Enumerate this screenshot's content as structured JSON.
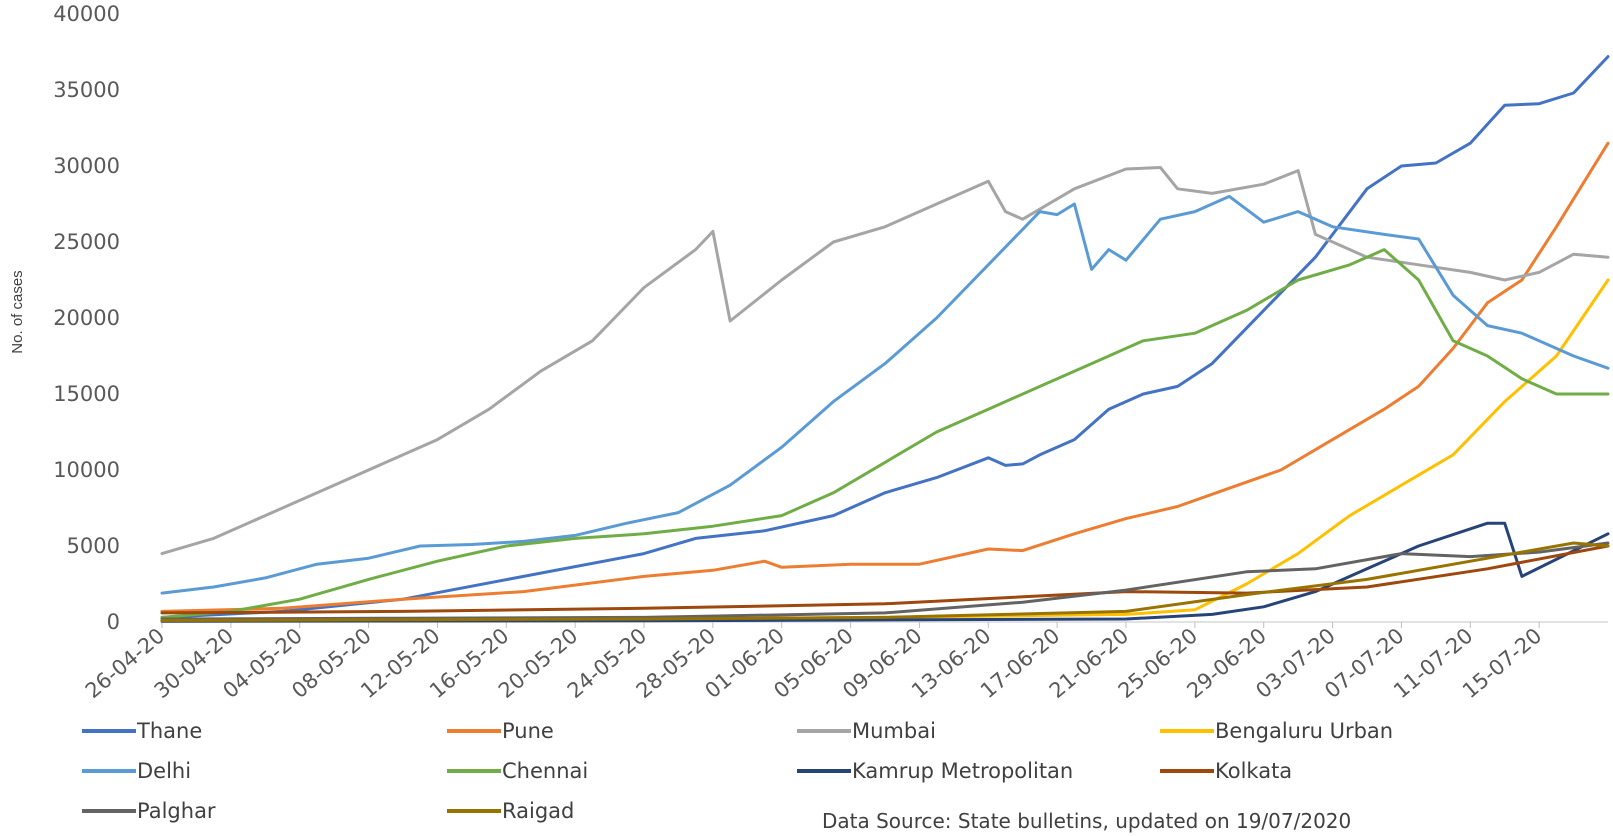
{
  "chart_data": {
    "type": "line",
    "title": "",
    "xlabel": "",
    "ylabel": "No. of cases",
    "ylim": [
      0,
      40000
    ],
    "yticks": [
      "0",
      "5000",
      "10000",
      "15000",
      "20000",
      "25000",
      "30000",
      "35000",
      "40000"
    ],
    "x_tick_labels": [
      "26-04-20",
      "30-04-20",
      "04-05-20",
      "08-05-20",
      "12-05-20",
      "16-05-20",
      "20-05-20",
      "24-05-20",
      "28-05-20",
      "01-06-20",
      "05-06-20",
      "09-06-20",
      "13-06-20",
      "17-06-20",
      "21-06-20",
      "25-06-20",
      "29-06-20",
      "03-07-20",
      "07-07-20",
      "11-07-20",
      "15-07-20"
    ],
    "x_start": "26-04-20",
    "x_end": "19-07-20",
    "grid": false,
    "legend_position": "bottom",
    "source_note": "Data Source: State bulletins, updated on  19/07/2020",
    "series": [
      {
        "name": "Thane",
        "color": "#4472C4",
        "x": [
          "26-04-20",
          "03-05-20",
          "10-05-20",
          "17-05-20",
          "24-05-20",
          "27-05-20",
          "31-05-20",
          "04-06-20",
          "07-06-20",
          "10-06-20",
          "13-06-20",
          "14-06-20",
          "15-06-20",
          "16-06-20",
          "18-06-20",
          "20-06-20",
          "22-06-20",
          "24-06-20",
          "26-06-20",
          "29-06-20",
          "02-07-20",
          "05-07-20",
          "07-07-20",
          "09-07-20",
          "11-07-20",
          "13-07-20",
          "15-07-20",
          "17-07-20",
          "19-07-20"
        ],
        "y": [
          300,
          700,
          1500,
          3000,
          4500,
          5500,
          6000,
          7000,
          8500,
          9500,
          10800,
          10300,
          10400,
          11000,
          12000,
          14000,
          15000,
          15500,
          17000,
          20500,
          24000,
          28500,
          30000,
          30200,
          31500,
          34000,
          34100,
          34800,
          37200
        ]
      },
      {
        "name": "Pune",
        "color": "#ED7D31",
        "x": [
          "26-04-20",
          "03-05-20",
          "10-05-20",
          "17-05-20",
          "24-05-20",
          "28-05-20",
          "31-05-20",
          "01-06-20",
          "05-06-20",
          "09-06-20",
          "13-06-20",
          "15-06-20",
          "18-06-20",
          "21-06-20",
          "24-06-20",
          "27-06-20",
          "30-06-20",
          "03-07-20",
          "06-07-20",
          "08-07-20",
          "10-07-20",
          "12-07-20",
          "14-07-20",
          "16-07-20",
          "19-07-20"
        ],
        "y": [
          700,
          900,
          1500,
          2000,
          3000,
          3400,
          4000,
          3600,
          3800,
          3800,
          4800,
          4700,
          5800,
          6800,
          7600,
          8800,
          10000,
          12000,
          14000,
          15500,
          18000,
          21000,
          22500,
          26000,
          31500
        ]
      },
      {
        "name": "Mumbai",
        "color": "#A5A5A5",
        "x": [
          "26-04-20",
          "29-04-20",
          "03-05-20",
          "06-05-20",
          "09-05-20",
          "12-05-20",
          "15-05-20",
          "18-05-20",
          "21-05-20",
          "24-05-20",
          "27-05-20",
          "28-05-20",
          "29-05-20",
          "01-06-20",
          "04-06-20",
          "07-06-20",
          "10-06-20",
          "13-06-20",
          "14-06-20",
          "15-06-20",
          "18-06-20",
          "21-06-20",
          "23-06-20",
          "24-06-20",
          "26-06-20",
          "29-06-20",
          "01-07-20",
          "02-07-20",
          "05-07-20",
          "08-07-20",
          "11-07-20",
          "13-07-20",
          "15-07-20",
          "17-07-20",
          "19-07-20"
        ],
        "y": [
          4500,
          5500,
          7500,
          9000,
          10500,
          12000,
          14000,
          16500,
          18500,
          22000,
          24500,
          25700,
          19800,
          22500,
          25000,
          26000,
          27500,
          29000,
          27000,
          26500,
          28500,
          29800,
          29900,
          28500,
          28200,
          28800,
          29700,
          25500,
          24000,
          23500,
          23000,
          22500,
          23000,
          24200,
          24000
        ]
      },
      {
        "name": "Bengaluru Urban",
        "color": "#FFC000",
        "x": [
          "26-04-20",
          "10-05-20",
          "24-05-20",
          "07-06-20",
          "21-06-20",
          "25-06-20",
          "28-06-20",
          "01-07-20",
          "04-07-20",
          "07-07-20",
          "10-07-20",
          "13-07-20",
          "16-07-20",
          "19-07-20"
        ],
        "y": [
          100,
          150,
          200,
          300,
          500,
          800,
          2500,
          4500,
          7000,
          9000,
          11000,
          14500,
          17500,
          22500
        ]
      },
      {
        "name": "Delhi",
        "color": "#5B9BD5",
        "x": [
          "26-04-20",
          "29-04-20",
          "02-05-20",
          "05-05-20",
          "08-05-20",
          "11-05-20",
          "14-05-20",
          "17-05-20",
          "20-05-20",
          "23-05-20",
          "26-05-20",
          "29-05-20",
          "01-06-20",
          "04-06-20",
          "07-06-20",
          "10-06-20",
          "13-06-20",
          "16-06-20",
          "17-06-20",
          "18-06-20",
          "19-06-20",
          "20-06-20",
          "21-06-20",
          "23-06-20",
          "25-06-20",
          "27-06-20",
          "29-06-20",
          "01-07-20",
          "03-07-20",
          "06-07-20",
          "08-07-20",
          "10-07-20",
          "12-07-20",
          "14-07-20",
          "17-07-20",
          "19-07-20"
        ],
        "y": [
          1900,
          2300,
          2900,
          3800,
          4200,
          5000,
          5100,
          5300,
          5700,
          6500,
          7200,
          9000,
          11500,
          14500,
          17000,
          20000,
          23500,
          27000,
          26800,
          27500,
          23200,
          24500,
          23800,
          26500,
          27000,
          28000,
          26300,
          27000,
          26000,
          25500,
          25200,
          21500,
          19500,
          19000,
          17500,
          16700
        ]
      },
      {
        "name": "Chennai",
        "color": "#70AD47",
        "x": [
          "26-04-20",
          "30-04-20",
          "04-05-20",
          "08-05-20",
          "12-05-20",
          "16-05-20",
          "20-05-20",
          "24-05-20",
          "28-05-20",
          "01-06-20",
          "04-06-20",
          "07-06-20",
          "10-06-20",
          "13-06-20",
          "16-06-20",
          "19-06-20",
          "22-06-20",
          "25-06-20",
          "28-06-20",
          "01-07-20",
          "04-07-20",
          "06-07-20",
          "08-07-20",
          "10-07-20",
          "12-07-20",
          "14-07-20",
          "16-07-20",
          "19-07-20"
        ],
        "y": [
          300,
          700,
          1500,
          2800,
          4000,
          5000,
          5500,
          5800,
          6300,
          7000,
          8500,
          10500,
          12500,
          14000,
          15500,
          17000,
          18500,
          19000,
          20500,
          22500,
          23500,
          24500,
          22500,
          18500,
          17500,
          16000,
          15000,
          15000
        ]
      },
      {
        "name": "Kamrup Metropolitan",
        "color": "#264478",
        "x": [
          "26-04-20",
          "24-05-20",
          "21-06-20",
          "26-06-20",
          "29-06-20",
          "02-07-20",
          "05-07-20",
          "08-07-20",
          "12-07-20",
          "13-07-20",
          "14-07-20",
          "19-07-20"
        ],
        "y": [
          50,
          80,
          200,
          500,
          1000,
          2000,
          3500,
          5000,
          6500,
          6500,
          3000,
          5800
        ]
      },
      {
        "name": "Kolkata",
        "color": "#9E480E",
        "x": [
          "26-04-20",
          "10-05-20",
          "24-05-20",
          "07-06-20",
          "21-06-20",
          "28-06-20",
          "05-07-20",
          "12-07-20",
          "19-07-20"
        ],
        "y": [
          600,
          700,
          900,
          1200,
          2000,
          1900,
          2300,
          3500,
          5000
        ]
      },
      {
        "name": "Palghar",
        "color": "#636363",
        "x": [
          "26-04-20",
          "10-05-20",
          "24-05-20",
          "07-06-20",
          "15-06-20",
          "21-06-20",
          "28-06-20",
          "02-07-20",
          "07-07-20",
          "11-07-20",
          "15-07-20",
          "19-07-20"
        ],
        "y": [
          200,
          250,
          300,
          600,
          1300,
          2100,
          3300,
          3500,
          4500,
          4300,
          4600,
          5200
        ]
      },
      {
        "name": "Raigad",
        "color": "#997300",
        "x": [
          "26-04-20",
          "10-05-20",
          "24-05-20",
          "07-06-20",
          "21-06-20",
          "28-06-20",
          "05-07-20",
          "12-07-20",
          "17-07-20",
          "19-07-20"
        ],
        "y": [
          100,
          150,
          200,
          300,
          700,
          1800,
          2800,
          4200,
          5200,
          5000
        ]
      }
    ]
  }
}
